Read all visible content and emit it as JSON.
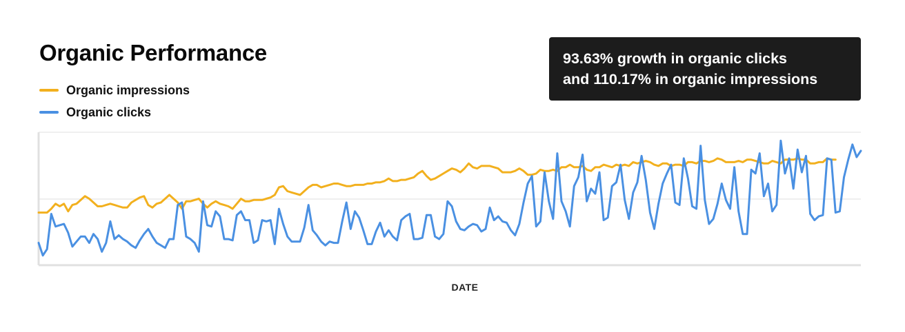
{
  "title": "Organic Performance",
  "legend": [
    {
      "label": "Organic impressions",
      "color": "#F2B01E"
    },
    {
      "label": "Organic clicks",
      "color": "#4A90E2"
    }
  ],
  "callout": {
    "line1": "93.63% growth in organic clicks",
    "line2": "and 110.17% in organic impressions"
  },
  "chart_data": {
    "type": "line",
    "xlabel": "DATE",
    "ylabel": "",
    "ylim": [
      0,
      100
    ],
    "grid": true,
    "legend_position": "top-left",
    "series": [
      {
        "name": "Organic impressions",
        "color": "#F2B01E",
        "values": [
          39,
          39,
          39,
          42,
          46,
          44,
          46,
          40,
          45,
          46,
          49,
          52,
          50,
          47,
          44,
          44,
          45,
          46,
          45,
          44,
          43,
          43,
          47,
          49,
          51,
          52,
          45,
          43,
          46,
          47,
          50,
          53,
          50,
          47,
          42,
          48,
          48,
          49,
          50,
          46,
          43,
          46,
          48,
          46,
          45,
          44,
          42,
          46,
          50,
          48,
          48,
          49,
          49,
          49,
          50,
          51,
          53,
          59,
          60,
          56,
          55,
          54,
          53,
          56,
          59,
          61,
          61,
          59,
          60,
          61,
          62,
          62,
          61,
          60,
          60,
          61,
          61,
          61,
          62,
          62,
          63,
          63,
          64,
          66,
          64,
          64,
          65,
          65,
          66,
          67,
          70,
          72,
          68,
          65,
          66,
          68,
          70,
          72,
          74,
          73,
          71,
          74,
          78,
          75,
          74,
          76,
          76,
          76,
          75,
          74,
          71,
          71,
          71,
          72,
          74,
          72,
          69,
          69,
          70,
          73,
          72,
          72,
          73,
          72,
          75,
          75,
          77,
          75,
          75,
          76,
          73,
          72,
          75,
          75,
          77,
          76,
          75,
          77,
          76,
          77,
          76,
          79,
          78,
          79,
          80,
          79,
          77,
          76,
          78,
          78,
          76,
          77,
          77,
          76,
          79,
          79,
          78,
          80,
          80,
          79,
          80,
          82,
          81,
          79,
          79,
          79,
          80,
          79,
          81,
          81,
          80,
          79,
          78,
          78,
          80,
          79,
          78,
          81,
          81,
          81,
          82,
          81,
          81,
          78,
          78,
          79,
          79,
          82,
          81,
          81
        ],
        "x": [
          0,
          2,
          4,
          6,
          8,
          10,
          12,
          14,
          16,
          18,
          20,
          22,
          24,
          26,
          28,
          30,
          32,
          34,
          36,
          38,
          40,
          42,
          44,
          46,
          48,
          50,
          52,
          54,
          56,
          58,
          60,
          62,
          64,
          66,
          68,
          70,
          72,
          74,
          76,
          78,
          80,
          82,
          84,
          86,
          88,
          90,
          92,
          94,
          96,
          98,
          100,
          102,
          104,
          106,
          108,
          110,
          112,
          114,
          116,
          118,
          120,
          122,
          124,
          126,
          128,
          130,
          132,
          134,
          136,
          138,
          140,
          142,
          144,
          146,
          148,
          150,
          152,
          154,
          156,
          158,
          160,
          162,
          164,
          166,
          168,
          170,
          172,
          174,
          176,
          178,
          180,
          182,
          184,
          186,
          188,
          190,
          192,
          194,
          196,
          198,
          200,
          202,
          204,
          206,
          208,
          210,
          212,
          214,
          216,
          218,
          220,
          222,
          224,
          226,
          228,
          230,
          232,
          234,
          236,
          238,
          240,
          242,
          244,
          246,
          248,
          250,
          252,
          254,
          256,
          258,
          260,
          262,
          264,
          266,
          268,
          270,
          272,
          274,
          276,
          278,
          280,
          282,
          284,
          286,
          288,
          290,
          292,
          294,
          296,
          298,
          300,
          302,
          304,
          306,
          308,
          310,
          312,
          314,
          316,
          318,
          320,
          322,
          324,
          326,
          328,
          330,
          332,
          334,
          336,
          338,
          340,
          342,
          344,
          346,
          348,
          350,
          352,
          354,
          356,
          358,
          360,
          362,
          364,
          366,
          368,
          370,
          372,
          374,
          376,
          378
        ]
      },
      {
        "name": "Organic clicks",
        "color": "#4A90E2",
        "values": [
          15,
          5,
          10,
          38,
          28,
          29,
          30,
          23,
          12,
          16,
          20,
          20,
          15,
          22,
          18,
          8,
          15,
          32,
          18,
          21,
          18,
          16,
          13,
          11,
          17,
          22,
          26,
          20,
          15,
          13,
          11,
          18,
          18,
          45,
          47,
          20,
          18,
          15,
          8,
          48,
          29,
          28,
          40,
          36,
          18,
          18,
          17,
          37,
          40,
          33,
          33,
          15,
          17,
          33,
          32,
          33,
          14,
          42,
          30,
          20,
          16,
          16,
          16,
          27,
          45,
          25,
          21,
          16,
          13,
          16,
          15,
          15,
          32,
          47,
          26,
          40,
          35,
          25,
          14,
          14,
          24,
          31,
          20,
          25,
          20,
          17,
          33,
          36,
          38,
          18,
          18,
          19,
          37,
          37,
          20,
          18,
          22,
          48,
          44,
          32,
          26,
          25,
          28,
          30,
          29,
          24,
          26,
          43,
          33,
          36,
          32,
          31,
          25,
          21,
          30,
          47,
          62,
          68,
          28,
          32,
          71,
          48,
          34,
          86,
          48,
          40,
          28,
          60,
          67,
          85,
          48,
          58,
          54,
          71,
          33,
          35,
          60,
          63,
          77,
          49,
          34,
          55,
          63,
          84,
          65,
          39,
          26,
          46,
          62,
          70,
          77,
          47,
          45,
          82,
          66,
          44,
          42,
          92,
          49,
          30,
          34,
          46,
          62,
          49,
          42,
          75,
          40,
          22,
          22,
          73,
          70,
          86,
          52,
          62,
          40,
          45,
          96,
          70,
          82,
          58,
          89,
          71,
          84,
          38,
          33,
          36,
          37,
          82,
          81,
          39,
          40,
          67,
          81,
          93,
          83,
          88
        ],
        "x": [
          0,
          2,
          4,
          6,
          8,
          10,
          12,
          14,
          16,
          18,
          20,
          22,
          24,
          26,
          28,
          30,
          32,
          34,
          36,
          38,
          40,
          42,
          44,
          46,
          48,
          50,
          52,
          54,
          56,
          58,
          60,
          62,
          64,
          66,
          68,
          70,
          72,
          74,
          76,
          78,
          80,
          82,
          84,
          86,
          88,
          90,
          92,
          94,
          96,
          98,
          100,
          102,
          104,
          106,
          108,
          110,
          112,
          114,
          116,
          118,
          120,
          122,
          124,
          126,
          128,
          130,
          132,
          134,
          136,
          138,
          140,
          142,
          144,
          146,
          148,
          150,
          152,
          154,
          156,
          158,
          160,
          162,
          164,
          166,
          168,
          170,
          172,
          174,
          176,
          178,
          180,
          182,
          184,
          186,
          188,
          190,
          192,
          194,
          196,
          198,
          200,
          202,
          204,
          206,
          208,
          210,
          212,
          214,
          216,
          218,
          220,
          222,
          224,
          226,
          228,
          230,
          232,
          234,
          236,
          238,
          240,
          242,
          244,
          246,
          248,
          250,
          252,
          254,
          256,
          258,
          260,
          262,
          264,
          266,
          268,
          270,
          272,
          274,
          276,
          278,
          280,
          282,
          284,
          286,
          288,
          290,
          292,
          294,
          296,
          298,
          300,
          302,
          304,
          306,
          308,
          310,
          312,
          314,
          316,
          318,
          320,
          322,
          324,
          326,
          328,
          330,
          332,
          334,
          336,
          338,
          340,
          342,
          344,
          346,
          348,
          350,
          352,
          354,
          356,
          358,
          360,
          362,
          364,
          366,
          368,
          370,
          372,
          374,
          376,
          378,
          380,
          382,
          384,
          386,
          388,
          390
        ]
      }
    ]
  }
}
